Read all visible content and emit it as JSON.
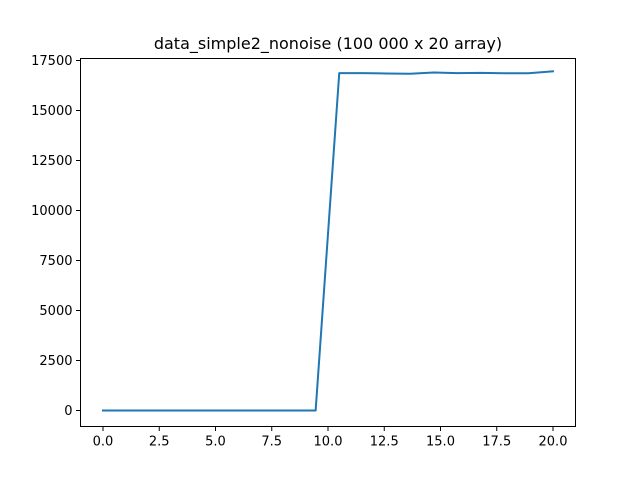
{
  "chart_data": {
    "type": "line",
    "title": "data_simple2_nonoise (100 000 x 20 array)",
    "xlabel": "",
    "ylabel": "",
    "xlim": [
      -1.0,
      21.0
    ],
    "ylim": [
      -800,
      17600
    ],
    "x_ticks": [
      0.0,
      2.5,
      5.0,
      7.5,
      10.0,
      12.5,
      15.0,
      17.5,
      20.0
    ],
    "x_tick_labels": [
      "0.0",
      "2.5",
      "5.0",
      "7.5",
      "10.0",
      "12.5",
      "15.0",
      "17.5",
      "20.0"
    ],
    "y_ticks": [
      0,
      2500,
      5000,
      7500,
      10000,
      12500,
      15000,
      17500
    ],
    "y_tick_labels": [
      "0",
      "2500",
      "5000",
      "7500",
      "10000",
      "12500",
      "15000",
      "17500"
    ],
    "grid": false,
    "series": [
      {
        "color": "#1f77b4",
        "x": [
          0.0,
          1.05,
          2.1,
          3.15,
          4.2,
          5.25,
          6.3,
          7.35,
          8.4,
          9.45,
          10.5,
          11.55,
          12.6,
          13.65,
          14.7,
          15.75,
          16.8,
          17.85,
          18.9,
          20.0
        ],
        "y": [
          0,
          0,
          0,
          0,
          0,
          0,
          0,
          0,
          0,
          0,
          16870,
          16870,
          16850,
          16840,
          16900,
          16870,
          16880,
          16860,
          16860,
          16960
        ]
      }
    ]
  }
}
